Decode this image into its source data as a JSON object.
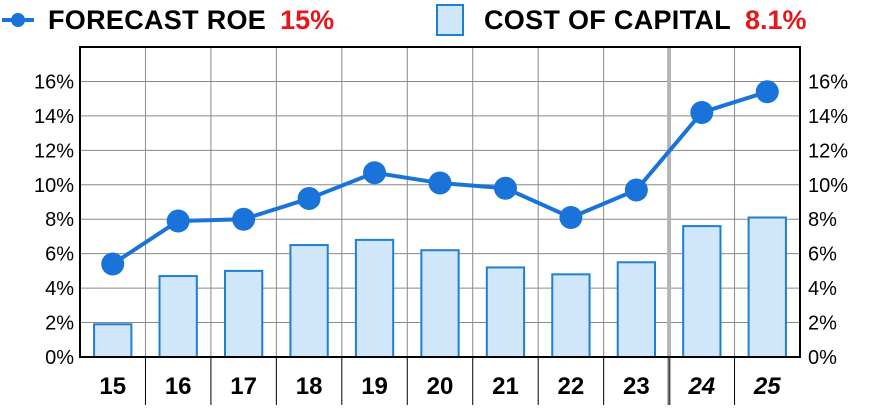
{
  "legend": {
    "roe_label": "FORECAST ROE",
    "roe_value": "15%",
    "coc_label": "COST OF CAPITAL",
    "coc_value": "8.1%"
  },
  "chart_data": {
    "type": "bar",
    "categories": [
      "15",
      "16",
      "17",
      "18",
      "19",
      "20",
      "21",
      "22",
      "23",
      "24",
      "25"
    ],
    "estimated_categories": [
      "24",
      "25"
    ],
    "series": [
      {
        "name": "COST OF CAPITAL",
        "kind": "bar",
        "values": [
          1.9,
          4.7,
          5.0,
          6.5,
          6.8,
          6.2,
          5.2,
          4.8,
          5.5,
          7.6,
          8.1
        ],
        "color": "#cfe6fb",
        "edge_color": "#1f7fd0"
      },
      {
        "name": "FORECAST ROE",
        "kind": "line",
        "values": [
          5.4,
          7.9,
          8.0,
          9.2,
          10.7,
          10.1,
          9.8,
          8.1,
          9.7,
          14.2,
          15.4
        ],
        "color": "#1a73d9"
      }
    ],
    "ylim": [
      0,
      18
    ],
    "y_ticks": [
      "0%",
      "2%",
      "4%",
      "6%",
      "8%",
      "10%",
      "12%",
      "14%",
      "16%"
    ],
    "y_tick_values": [
      0,
      2,
      4,
      6,
      8,
      10,
      12,
      14,
      16
    ],
    "y_axis_sides": "both",
    "grid": true,
    "legend_position": "top",
    "divider_after_category": "23",
    "highlight_color": "#e8161b"
  }
}
